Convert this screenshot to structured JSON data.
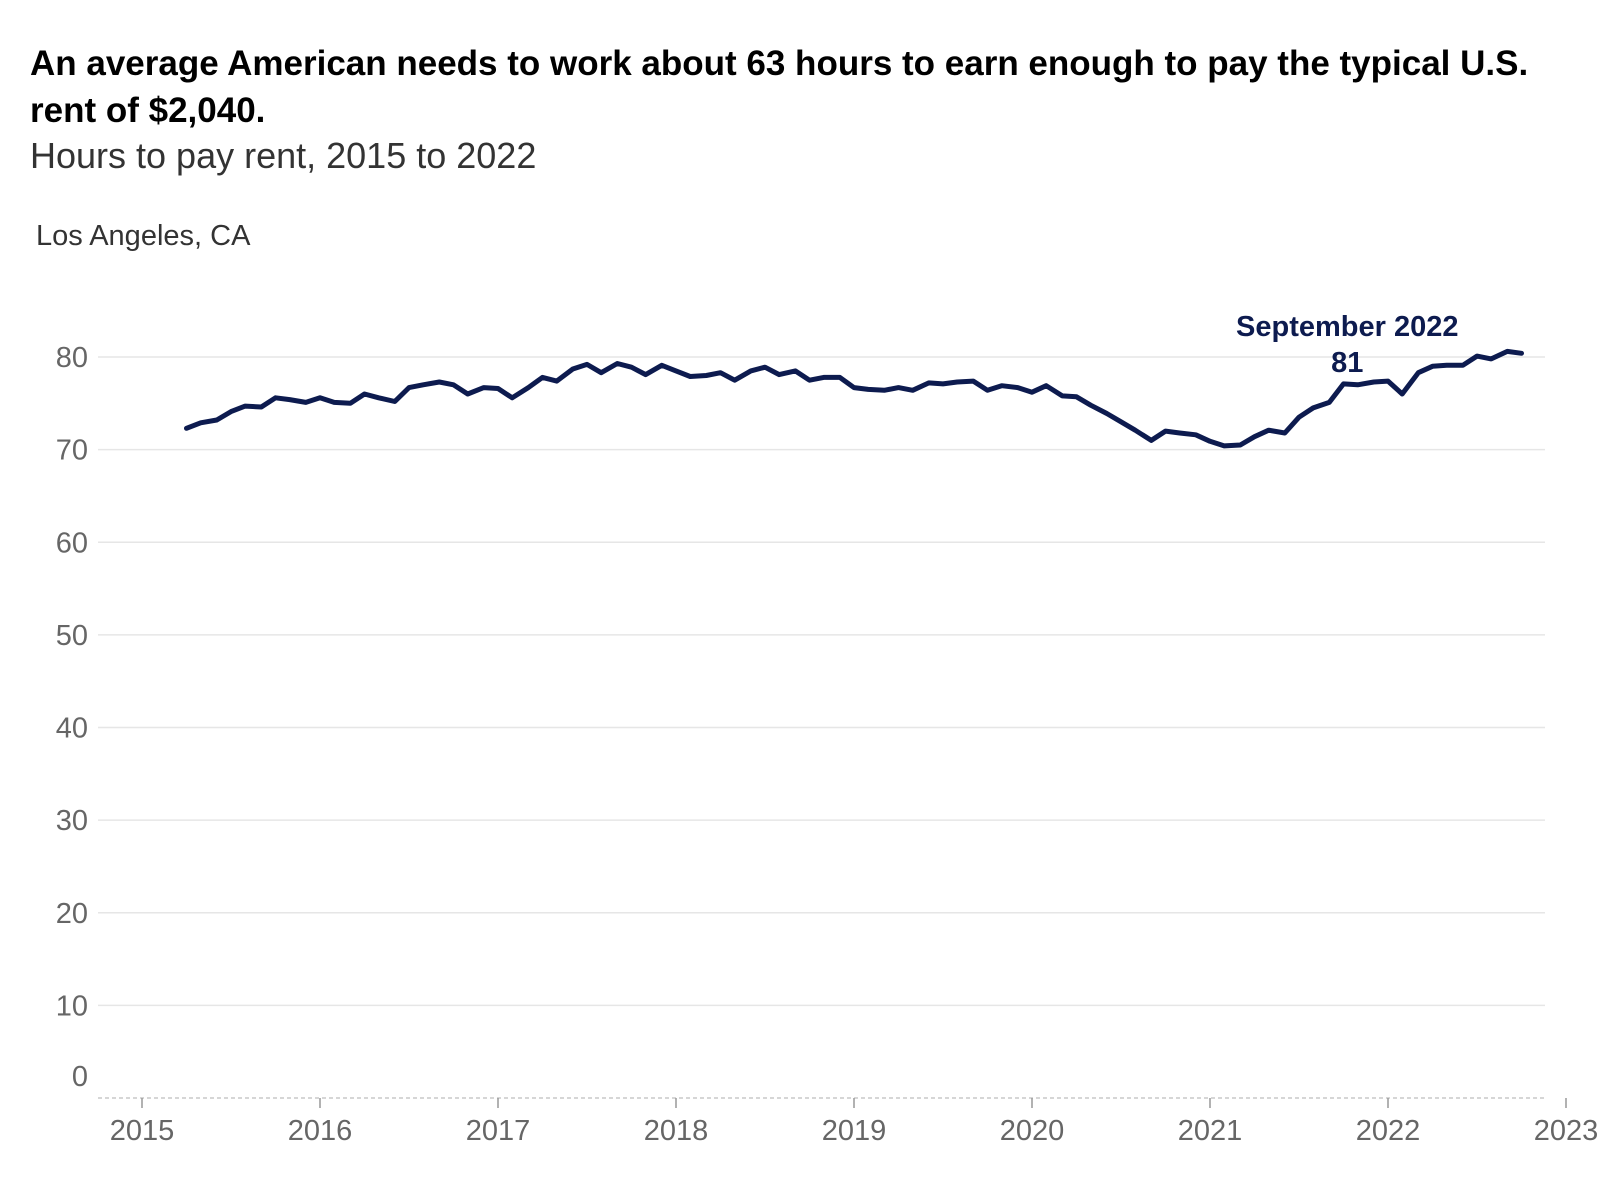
{
  "chart_data": {
    "type": "line",
    "title": "An average American needs to work about 63 hours to earn enough to pay the typical U.S. rent of $2,040.",
    "subtitle": "Hours to pay rent, 2015 to 2022",
    "panel_label": "Los Angeles, CA",
    "xlabel": "",
    "ylabel": "",
    "x_ticks": [
      "2015",
      "2016",
      "2017",
      "2018",
      "2019",
      "2020",
      "2021",
      "2022",
      "2023"
    ],
    "y_ticks": [
      0,
      10,
      20,
      30,
      40,
      50,
      60,
      70,
      80
    ],
    "xlim": [
      2015,
      2023
    ],
    "ylim": [
      0,
      85
    ],
    "grid": true,
    "line_color": "#0d1b4f",
    "annotation": {
      "label": "September 2022",
      "value": "81",
      "x": 2022.67
    },
    "series": [
      {
        "x": [
          2015.25,
          2015.33,
          2015.42,
          2015.5,
          2015.58,
          2015.67,
          2015.75,
          2015.83,
          2015.92,
          2016.0,
          2016.08,
          2016.17,
          2016.25,
          2016.33,
          2016.42,
          2016.5,
          2016.58,
          2016.67,
          2016.75,
          2016.83,
          2016.92,
          2017.0,
          2017.08,
          2017.17,
          2017.25,
          2017.33,
          2017.42,
          2017.5,
          2017.58,
          2017.67,
          2017.75,
          2017.83,
          2017.92,
          2018.0,
          2018.08,
          2018.17,
          2018.25,
          2018.33,
          2018.42,
          2018.5,
          2018.58,
          2018.67,
          2018.75,
          2018.83,
          2018.92,
          2019.0,
          2019.08,
          2019.17,
          2019.25,
          2019.33,
          2019.42,
          2019.5,
          2019.58,
          2019.67,
          2019.75,
          2019.83,
          2019.92,
          2020.0,
          2020.08,
          2020.17,
          2020.25,
          2020.33,
          2020.42,
          2020.5,
          2020.58,
          2020.67,
          2020.75,
          2020.83,
          2020.92,
          2021.0,
          2021.08,
          2021.17,
          2021.25,
          2021.33,
          2021.42,
          2021.5,
          2021.58,
          2021.67,
          2021.75,
          2021.83,
          2021.92,
          2022.0,
          2022.08,
          2022.17,
          2022.25,
          2022.33,
          2022.42,
          2022.5,
          2022.58,
          2022.67,
          2022.75
        ],
        "values": [
          72.3,
          72.9,
          73.2,
          74.1,
          74.7,
          74.6,
          75.6,
          75.4,
          75.1,
          75.6,
          75.1,
          75.0,
          76.0,
          75.6,
          75.2,
          76.7,
          77.0,
          77.3,
          77.0,
          76.0,
          76.7,
          76.6,
          75.6,
          76.7,
          77.8,
          77.4,
          78.7,
          79.2,
          78.3,
          79.3,
          78.9,
          78.1,
          79.1,
          78.5,
          77.9,
          78.0,
          78.3,
          77.5,
          78.5,
          78.9,
          78.1,
          78.5,
          77.5,
          77.8,
          77.8,
          76.7,
          76.5,
          76.4,
          76.7,
          76.4,
          77.2,
          77.1,
          77.3,
          77.4,
          76.4,
          76.9,
          76.7,
          76.2,
          76.9,
          75.8,
          75.7,
          74.8,
          73.9,
          73.0,
          72.1,
          71.0,
          72.0,
          71.8,
          71.6,
          70.9,
          70.4,
          70.5,
          71.4,
          72.1,
          71.8,
          73.5,
          74.5,
          75.1,
          77.1,
          77.0,
          77.3,
          77.4,
          76.0,
          78.3,
          79.0,
          79.1,
          79.1,
          80.1,
          79.8,
          80.6,
          80.4
        ]
      }
    ]
  }
}
